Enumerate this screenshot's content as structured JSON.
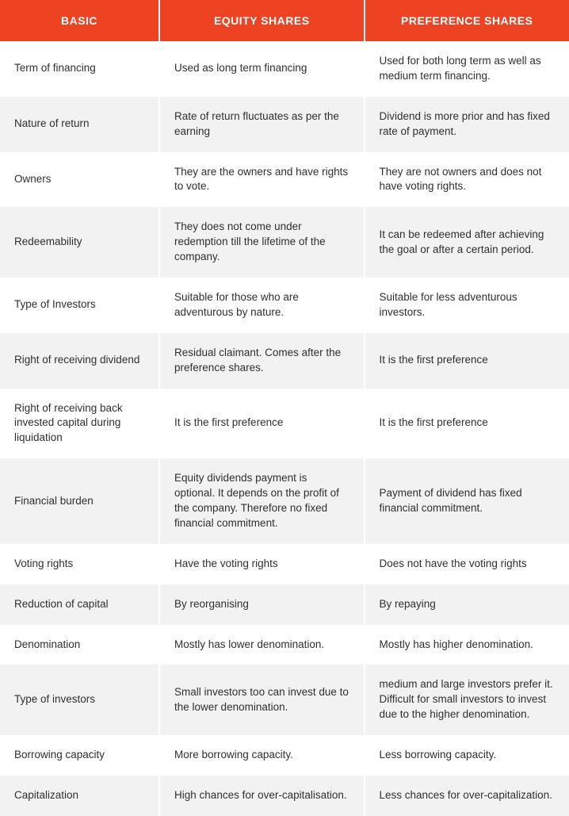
{
  "table": {
    "header_bg": "#ee4323",
    "header_fg": "#ffffff",
    "row_bg_even": "#ffffff",
    "row_bg_odd": "#f2f2f2",
    "text_color": "#2f2f2f",
    "columns": [
      "BASIC",
      "EQUITY SHARES",
      "PREFERENCE SHARES"
    ],
    "rows": [
      [
        "Term of financing",
        "Used as long term financing",
        "Used for both long term as well as medium term financing."
      ],
      [
        "Nature of return",
        "Rate of return fluctuates as per the earning",
        "Dividend is more prior and has fixed rate of payment."
      ],
      [
        "Owners",
        "They are the owners and have rights to vote.",
        "They are not owners and does not have voting rights."
      ],
      [
        "Redeemability",
        "They does not come under redemption till the lifetime of the company.",
        "It can be redeemed after achieving the goal or after a certain period."
      ],
      [
        "Type of Investors",
        "Suitable for those who are adventurous by nature.",
        "Suitable for less adventurous investors."
      ],
      [
        "Right of receiving dividend",
        "Residual claimant. Comes after the preference shares.",
        "It is the first preference"
      ],
      [
        "Right of receiving back invested capital during liquidation",
        "It is the first preference",
        "It is the first preference"
      ],
      [
        "Financial burden",
        "Equity dividends payment is optional. It depends on the profit of the company. Therefore no fixed financial commitment.",
        "Payment of dividend has fixed financial commitment."
      ],
      [
        "Voting rights",
        "Have the voting rights",
        "Does not have the voting rights"
      ],
      [
        "Reduction of capital",
        "By reorganising",
        "By repaying"
      ],
      [
        "Denomination",
        "Mostly has lower denomination.",
        "Mostly has higher denomination."
      ],
      [
        "Type of investors",
        "Small investors too can invest due to the lower denomination.",
        "medium and large investors prefer it. Difficult for small investors to invest due to the higher denomination."
      ],
      [
        "Borrowing capacity",
        "More borrowing capacity.",
        "Less borrowing capacity."
      ],
      [
        "Capitalization",
        "High chances for over-capitalisation.",
        "Less chances for over-capitalization."
      ]
    ]
  }
}
